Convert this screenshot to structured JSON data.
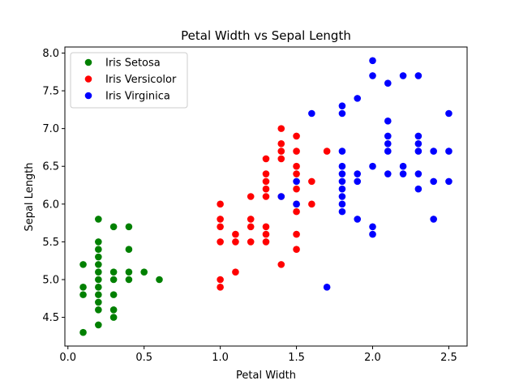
{
  "chart_data": {
    "type": "scatter",
    "title": "Petal Width vs Sepal Length",
    "xlabel": "Petal Width",
    "ylabel": "Sepal Length",
    "xlim": [
      -0.02,
      2.62
    ],
    "ylim": [
      4.12,
      8.08
    ],
    "x_ticks": [
      "0.0",
      "0.5",
      "1.0",
      "1.5",
      "2.0",
      "2.5"
    ],
    "y_ticks": [
      "4.5",
      "5.0",
      "5.5",
      "6.0",
      "6.5",
      "7.0",
      "7.5",
      "8.0"
    ],
    "grid": false,
    "legend_position": "upper-left",
    "series": [
      {
        "name": "Iris Setosa",
        "color": "#008000",
        "points": [
          [
            0.1,
            5.2
          ],
          [
            0.1,
            4.9
          ],
          [
            0.1,
            4.8
          ],
          [
            0.1,
            4.3
          ],
          [
            0.2,
            5.8
          ],
          [
            0.2,
            5.5
          ],
          [
            0.2,
            5.4
          ],
          [
            0.2,
            5.3
          ],
          [
            0.2,
            5.2
          ],
          [
            0.2,
            5.1
          ],
          [
            0.2,
            5.0
          ],
          [
            0.2,
            4.9
          ],
          [
            0.2,
            4.8
          ],
          [
            0.2,
            4.7
          ],
          [
            0.2,
            4.6
          ],
          [
            0.2,
            4.4
          ],
          [
            0.3,
            5.7
          ],
          [
            0.3,
            5.1
          ],
          [
            0.3,
            5.0
          ],
          [
            0.3,
            4.8
          ],
          [
            0.3,
            4.6
          ],
          [
            0.3,
            4.5
          ],
          [
            0.4,
            5.7
          ],
          [
            0.4,
            5.4
          ],
          [
            0.4,
            5.1
          ],
          [
            0.4,
            5.0
          ],
          [
            0.5,
            5.1
          ],
          [
            0.6,
            5.0
          ]
        ]
      },
      {
        "name": "Iris Versicolor",
        "color": "#ff0000",
        "points": [
          [
            1.0,
            6.0
          ],
          [
            1.0,
            5.8
          ],
          [
            1.0,
            5.7
          ],
          [
            1.0,
            5.5
          ],
          [
            1.0,
            5.0
          ],
          [
            1.0,
            4.9
          ],
          [
            1.1,
            5.6
          ],
          [
            1.1,
            5.5
          ],
          [
            1.1,
            5.1
          ],
          [
            1.2,
            6.1
          ],
          [
            1.2,
            5.8
          ],
          [
            1.2,
            5.7
          ],
          [
            1.2,
            5.5
          ],
          [
            1.3,
            6.6
          ],
          [
            1.3,
            6.4
          ],
          [
            1.3,
            6.3
          ],
          [
            1.3,
            6.2
          ],
          [
            1.3,
            6.1
          ],
          [
            1.3,
            5.7
          ],
          [
            1.3,
            5.6
          ],
          [
            1.3,
            5.5
          ],
          [
            1.4,
            7.0
          ],
          [
            1.4,
            6.8
          ],
          [
            1.4,
            6.7
          ],
          [
            1.4,
            6.6
          ],
          [
            1.4,
            6.1
          ],
          [
            1.4,
            5.2
          ],
          [
            1.5,
            6.9
          ],
          [
            1.5,
            6.7
          ],
          [
            1.5,
            6.5
          ],
          [
            1.5,
            6.4
          ],
          [
            1.5,
            6.2
          ],
          [
            1.5,
            6.0
          ],
          [
            1.5,
            5.9
          ],
          [
            1.5,
            5.6
          ],
          [
            1.5,
            5.4
          ],
          [
            1.6,
            6.3
          ],
          [
            1.6,
            6.0
          ],
          [
            1.7,
            6.7
          ]
        ]
      },
      {
        "name": "Iris Virginica",
        "color": "#0000ff",
        "points": [
          [
            1.4,
            6.1
          ],
          [
            1.5,
            6.3
          ],
          [
            1.5,
            6.0
          ],
          [
            1.6,
            7.2
          ],
          [
            1.7,
            4.9
          ],
          [
            1.8,
            7.3
          ],
          [
            1.8,
            7.2
          ],
          [
            1.8,
            6.7
          ],
          [
            1.8,
            6.5
          ],
          [
            1.8,
            6.4
          ],
          [
            1.8,
            6.3
          ],
          [
            1.8,
            6.2
          ],
          [
            1.8,
            6.1
          ],
          [
            1.8,
            6.0
          ],
          [
            1.8,
            5.9
          ],
          [
            1.9,
            7.4
          ],
          [
            1.9,
            6.4
          ],
          [
            1.9,
            6.3
          ],
          [
            1.9,
            5.8
          ],
          [
            2.0,
            7.9
          ],
          [
            2.0,
            7.7
          ],
          [
            2.0,
            6.5
          ],
          [
            2.0,
            5.7
          ],
          [
            2.0,
            5.6
          ],
          [
            2.1,
            7.6
          ],
          [
            2.1,
            7.1
          ],
          [
            2.1,
            6.9
          ],
          [
            2.1,
            6.8
          ],
          [
            2.1,
            6.7
          ],
          [
            2.1,
            6.4
          ],
          [
            2.2,
            7.7
          ],
          [
            2.2,
            6.5
          ],
          [
            2.2,
            6.4
          ],
          [
            2.3,
            7.7
          ],
          [
            2.3,
            6.9
          ],
          [
            2.3,
            6.8
          ],
          [
            2.3,
            6.7
          ],
          [
            2.3,
            6.4
          ],
          [
            2.3,
            6.2
          ],
          [
            2.4,
            6.7
          ],
          [
            2.4,
            6.3
          ],
          [
            2.4,
            5.8
          ],
          [
            2.5,
            7.2
          ],
          [
            2.5,
            6.7
          ],
          [
            2.5,
            6.3
          ]
        ]
      }
    ]
  }
}
